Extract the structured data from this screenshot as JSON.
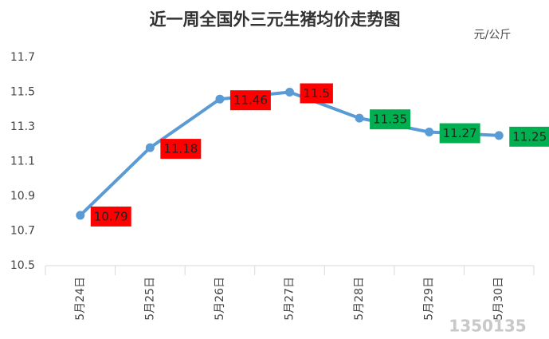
{
  "chart_data": {
    "type": "line",
    "title": "近一周全国外三元生猪均价走势图",
    "unit": "元/公斤",
    "categories": [
      "5月24日",
      "5月25日",
      "5月26日",
      "5月27日",
      "5月28日",
      "5月29日",
      "5月30日"
    ],
    "values": [
      10.79,
      11.18,
      11.46,
      11.5,
      11.35,
      11.27,
      11.25
    ],
    "color": "#5b9bd5",
    "label_colors": [
      "#ff0000",
      "#ff0000",
      "#ff0000",
      "#ff0000",
      "#00b050",
      "#00b050",
      "#00b050"
    ],
    "ylim": [
      10.5,
      11.7
    ],
    "yticks": [
      10.5,
      10.7,
      10.9,
      11.1,
      11.3,
      11.5,
      11.7
    ],
    "grid": false,
    "watermark": "1350135"
  }
}
